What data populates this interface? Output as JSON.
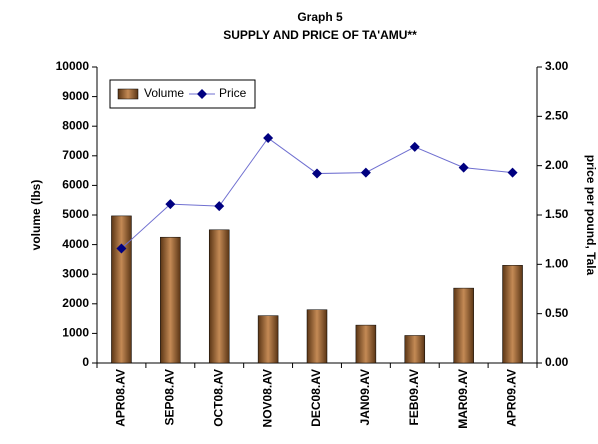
{
  "chart_data": {
    "type": "bar_line",
    "title": "Graph 5",
    "subtitle": "SUPPLY AND PRICE OF TA'AMU**",
    "y_label": "volume (lbs)",
    "y2_label": "price per pound, Tala",
    "categories": [
      "APR08.AV",
      "SEP08.AV",
      "OCT08.AV",
      "NOV08.AV",
      "DEC08.AV",
      "JAN09.AV",
      "FEB09.AV",
      "MAR09.AV",
      "APR09.AV"
    ],
    "series": [
      {
        "name": "Volume",
        "type": "bar",
        "color": "#8b5a2b",
        "values": [
          4970,
          4250,
          4500,
          1600,
          1800,
          1280,
          930,
          2530,
          3300
        ]
      },
      {
        "name": "Price",
        "type": "line",
        "axis": "y2",
        "color": "#000080",
        "values": [
          1.16,
          1.61,
          1.59,
          2.28,
          1.92,
          1.93,
          2.19,
          1.98,
          1.93
        ]
      }
    ],
    "ylim": [
      0,
      10000
    ],
    "yticks": [
      0,
      1000,
      2000,
      3000,
      4000,
      5000,
      6000,
      7000,
      8000,
      9000,
      10000
    ],
    "y2lim": [
      0,
      3
    ],
    "y2ticks": [
      {
        "value": 0,
        "label": "0.00"
      },
      {
        "value": 0.5,
        "label": "0.50"
      },
      {
        "value": 1,
        "label": "1.00"
      },
      {
        "value": 1.5,
        "label": "1.50"
      },
      {
        "value": 2,
        "label": "2.00"
      },
      {
        "value": 2.5,
        "label": "2.50"
      },
      {
        "value": 3,
        "label": "3.00"
      }
    ],
    "legend": "top-left"
  }
}
